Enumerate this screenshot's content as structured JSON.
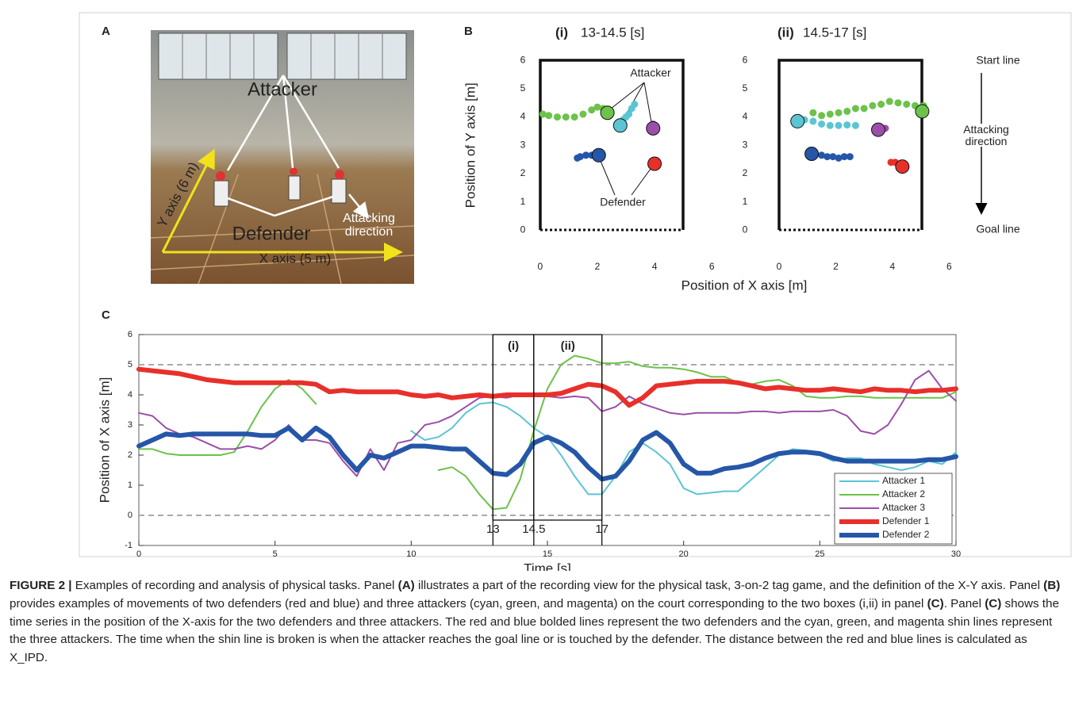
{
  "panel_labels": [
    "A",
    "B",
    "C"
  ],
  "photo": {
    "attacker": "Attacker",
    "defender": "Defender",
    "y_axis": "Y axis (6 m)",
    "x_axis": "X axis (5 m)",
    "direction": "Attacking direction"
  },
  "chart_data": [
    {
      "type": "scatter",
      "title_label": "(i)",
      "title": "13-14.5 [s]",
      "ylabel": "Position of Y axis [m]",
      "xlabel": "Position of X axis [m]",
      "xlim": [
        -0.8,
        6.3
      ],
      "ylim": [
        -0.8,
        6.9
      ],
      "xticks": [
        0,
        2,
        4,
        6
      ],
      "yticks": [
        0,
        1,
        2,
        3,
        4,
        5,
        6
      ],
      "annotations": [
        "Attacker",
        "Defender"
      ],
      "series": [
        {
          "color": "#5bc5d3",
          "x": [
            3.3,
            3.2,
            3.1,
            3.0,
            2.9,
            2.8
          ],
          "y": [
            4.45,
            4.3,
            4.1,
            4.0,
            3.9,
            3.7
          ]
        },
        {
          "color": "#6cc24a",
          "x": [
            0.1,
            0.3,
            0.6,
            0.9,
            1.2,
            1.5,
            1.8,
            2.0,
            2.2,
            2.35
          ],
          "y": [
            4.1,
            4.05,
            4.0,
            4.0,
            4.0,
            4.1,
            4.25,
            4.35,
            4.3,
            4.15
          ]
        },
        {
          "color": "#9b4fa8",
          "x": [
            3.95,
            3.95
          ],
          "y": [
            3.75,
            3.6
          ]
        },
        {
          "color": "#e8302a",
          "x": [
            4.0
          ],
          "y": [
            2.35
          ]
        },
        {
          "color": "#2556a8",
          "x": [
            1.3,
            1.4,
            1.6,
            1.8,
            2.05
          ],
          "y": [
            2.55,
            2.6,
            2.65,
            2.65,
            2.65
          ]
        }
      ]
    },
    {
      "type": "scatter",
      "title_label": "(ii)",
      "title": "14.5-17 [s]",
      "xlim": [
        -1.4,
        6.3
      ],
      "ylim": [
        -0.8,
        6.9
      ],
      "xticks": [
        0,
        2,
        4,
        6
      ],
      "yticks": [
        0,
        1,
        2,
        3,
        4,
        5,
        6
      ],
      "annotations": [
        "Start line",
        "Attacking direction",
        "Goal line"
      ],
      "series": [
        {
          "color": "#5bc5d3",
          "x": [
            2.7,
            2.4,
            2.1,
            1.8,
            1.5,
            1.2,
            0.9,
            0.65
          ],
          "y": [
            3.7,
            3.72,
            3.7,
            3.7,
            3.75,
            3.85,
            3.9,
            3.85
          ]
        },
        {
          "color": "#6cc24a",
          "x": [
            1.2,
            1.5,
            1.8,
            2.1,
            2.4,
            2.7,
            3.0,
            3.3,
            3.6,
            3.9,
            4.2,
            4.5,
            4.8,
            5.1,
            5.05
          ],
          "y": [
            4.15,
            4.05,
            4.1,
            4.15,
            4.2,
            4.3,
            4.3,
            4.4,
            4.45,
            4.55,
            4.5,
            4.45,
            4.4,
            4.4,
            4.2
          ]
        },
        {
          "color": "#9b4fa8",
          "x": [
            3.75,
            3.5
          ],
          "y": [
            3.6,
            3.55
          ]
        },
        {
          "color": "#e8302a",
          "x": [
            3.95,
            4.1,
            4.35
          ],
          "y": [
            2.4,
            2.4,
            2.25
          ]
        },
        {
          "color": "#2556a8",
          "x": [
            2.5,
            2.3,
            2.1,
            1.9,
            1.7,
            1.5,
            1.15
          ],
          "y": [
            2.6,
            2.6,
            2.55,
            2.6,
            2.6,
            2.65,
            2.7
          ]
        }
      ]
    },
    {
      "type": "line",
      "xlabel": "Time [s]",
      "ylabel": "Position of X axis [m]",
      "xlim": [
        0,
        30
      ],
      "ylim": [
        -1,
        6
      ],
      "xticks": [
        0,
        5,
        10,
        15,
        20,
        25,
        30
      ],
      "yticks": [
        -1,
        0,
        1,
        2,
        3,
        4,
        5,
        6
      ],
      "reference_lines": [
        0,
        5
      ],
      "boxes": [
        {
          "label": "(i)",
          "start": 13,
          "end": 14.5
        },
        {
          "label": "(ii)",
          "start": 14.5,
          "end": 17
        }
      ],
      "box_ticks": [
        13,
        14.5,
        17
      ],
      "legend": "lower right",
      "x": [
        0,
        0.5,
        1,
        1.5,
        2,
        2.5,
        3,
        3.5,
        4,
        4.5,
        5,
        5.5,
        6,
        6.5,
        7,
        7.5,
        8,
        8.5,
        9,
        9.5,
        10,
        10.5,
        11,
        11.5,
        12,
        12.5,
        13,
        13.5,
        14,
        14.5,
        15,
        15.5,
        16,
        16.5,
        17,
        17.5,
        18,
        18.5,
        19,
        19.5,
        20,
        20.5,
        21,
        21.5,
        22,
        22.5,
        23,
        23.5,
        24,
        24.5,
        25,
        25.5,
        26,
        26.5,
        27,
        27.5,
        28,
        28.5,
        29,
        29.5,
        30
      ],
      "series": [
        {
          "name": "Attacker 1",
          "color": "#5bc5d3",
          "linewidth": 2,
          "values": [
            null,
            null,
            null,
            null,
            null,
            null,
            null,
            null,
            null,
            null,
            null,
            null,
            null,
            null,
            null,
            null,
            null,
            null,
            null,
            null,
            2.8,
            2.5,
            2.6,
            2.9,
            3.4,
            3.7,
            3.75,
            3.6,
            3.3,
            2.9,
            2.6,
            2.0,
            1.3,
            0.7,
            0.7,
            1.3,
            2.1,
            2.4,
            2.1,
            1.7,
            0.9,
            0.7,
            0.75,
            0.8,
            0.8,
            1.2,
            1.6,
            2.0,
            2.2,
            2.15,
            2.0,
            1.8,
            1.9,
            1.9,
            1.7,
            1.6,
            1.5,
            1.6,
            1.8,
            1.7,
            2.1
          ]
        },
        {
          "name": "Attacker 2",
          "color": "#6cc24a",
          "linewidth": 2,
          "values": [
            2.2,
            2.2,
            2.05,
            2.0,
            2.0,
            2.0,
            2.0,
            2.1,
            2.8,
            3.6,
            4.2,
            4.5,
            4.2,
            3.7,
            null,
            null,
            null,
            null,
            null,
            null,
            null,
            null,
            1.5,
            1.6,
            1.3,
            0.7,
            0.2,
            0.25,
            1.2,
            2.8,
            4.2,
            5.0,
            5.3,
            5.2,
            5.05,
            5.05,
            5.1,
            4.95,
            4.9,
            4.9,
            4.85,
            4.75,
            4.6,
            4.6,
            4.4,
            4.35,
            4.45,
            4.5,
            4.3,
            3.95,
            3.9,
            3.9,
            3.95,
            3.95,
            3.9,
            3.9,
            3.9,
            3.9,
            3.9,
            3.9,
            4.1
          ]
        },
        {
          "name": "Attacker 3",
          "color": "#9b4fa8",
          "linewidth": 2,
          "values": [
            3.4,
            3.3,
            2.9,
            2.7,
            2.6,
            2.4,
            2.2,
            2.2,
            2.3,
            2.2,
            2.5,
            3.0,
            2.5,
            2.5,
            2.4,
            1.8,
            1.3,
            2.2,
            1.5,
            2.4,
            2.5,
            3.0,
            3.1,
            3.3,
            3.6,
            3.9,
            3.95,
            3.9,
            4.0,
            4.0,
            3.95,
            3.9,
            3.95,
            3.9,
            3.45,
            3.6,
            3.95,
            3.7,
            3.55,
            3.4,
            3.35,
            3.4,
            3.4,
            3.4,
            3.4,
            3.45,
            3.45,
            3.4,
            3.45,
            3.45,
            3.45,
            3.5,
            3.3,
            2.8,
            2.7,
            3.0,
            3.7,
            4.5,
            4.8,
            4.2,
            3.8
          ]
        },
        {
          "name": "Defender 1",
          "color": "#e8302a",
          "linewidth": 6,
          "values": [
            4.85,
            4.8,
            4.75,
            4.7,
            4.6,
            4.5,
            4.45,
            4.4,
            4.4,
            4.4,
            4.4,
            4.4,
            4.4,
            4.35,
            4.1,
            4.15,
            4.1,
            4.1,
            4.1,
            4.1,
            4.0,
            3.95,
            4.0,
            3.9,
            3.95,
            4.0,
            3.95,
            4.0,
            4.0,
            4.0,
            4.0,
            4.05,
            4.2,
            4.35,
            4.3,
            4.1,
            3.65,
            3.9,
            4.3,
            4.35,
            4.4,
            4.45,
            4.45,
            4.45,
            4.4,
            4.3,
            4.2,
            4.25,
            4.2,
            4.15,
            4.15,
            4.2,
            4.15,
            4.1,
            4.2,
            4.15,
            4.15,
            4.1,
            4.15,
            4.15,
            4.2
          ]
        },
        {
          "name": "Defender 2",
          "color": "#2556a8",
          "linewidth": 6,
          "values": [
            2.3,
            2.5,
            2.7,
            2.65,
            2.7,
            2.7,
            2.7,
            2.7,
            2.7,
            2.65,
            2.65,
            2.9,
            2.5,
            2.9,
            2.6,
            2.0,
            1.5,
            2.0,
            1.9,
            2.1,
            2.3,
            2.3,
            2.25,
            2.2,
            2.2,
            1.8,
            1.4,
            1.35,
            1.7,
            2.4,
            2.6,
            2.4,
            2.1,
            1.6,
            1.2,
            1.3,
            1.8,
            2.5,
            2.75,
            2.4,
            1.7,
            1.4,
            1.4,
            1.55,
            1.6,
            1.7,
            1.9,
            2.05,
            2.1,
            2.1,
            2.05,
            1.9,
            1.8,
            1.8,
            1.8,
            1.8,
            1.8,
            1.8,
            1.85,
            1.85,
            1.95
          ]
        }
      ]
    }
  ],
  "caption": [
    {
      "text": "FIGURE 2 |",
      "bold": true
    },
    {
      "text": " Examples of recording and analysis of physical tasks. Panel ",
      "bold": false
    },
    {
      "text": "(A)",
      "bold": true
    },
    {
      "text": " illustrates a part of the recording view for the physical task, 3-on-2 tag game, and the definition of the X-Y axis. Panel ",
      "bold": false
    },
    {
      "text": "(B)",
      "bold": true
    },
    {
      "text": " provides examples of movements of two defenders (red and blue) and three attackers (cyan, green, and magenta) on the court corresponding to the two boxes (i,ii) in panel ",
      "bold": false
    },
    {
      "text": "(C)",
      "bold": true
    },
    {
      "text": ". Panel ",
      "bold": false
    },
    {
      "text": "(C)",
      "bold": true
    },
    {
      "text": " shows the time series in the position of the X-axis for the two defenders and three attackers. The red and blue bolded lines represent the two defenders and the cyan, green, and magenta shin lines represent the three attackers. The time when the shin line is broken is when the attacker reaches the goal line or is touched by the defender. The distance between the red and blue lines is calculated as X_IPD.",
      "bold": false
    }
  ]
}
